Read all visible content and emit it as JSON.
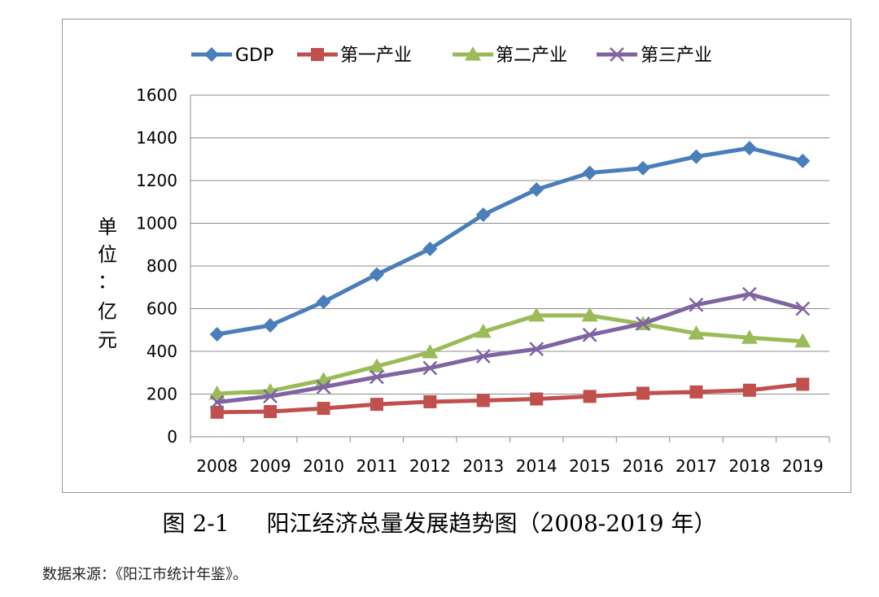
{
  "chart_data": {
    "type": "line",
    "categories": [
      "2008",
      "2009",
      "2010",
      "2011",
      "2012",
      "2013",
      "2014",
      "2015",
      "2016",
      "2017",
      "2018",
      "2019"
    ],
    "series": [
      {
        "name": "GDP",
        "color": "#4a7ebb",
        "marker": "diamond",
        "values": [
          480,
          522,
          632,
          760,
          880,
          1040,
          1158,
          1236,
          1258,
          1312,
          1352,
          1292
        ]
      },
      {
        "name": "第一产业",
        "color": "#c0504d",
        "marker": "square",
        "values": [
          115,
          118,
          133,
          152,
          164,
          170,
          177,
          189,
          204,
          210,
          218,
          246
        ]
      },
      {
        "name": "第二产业",
        "color": "#9bbb59",
        "marker": "triangle",
        "values": [
          202,
          214,
          266,
          330,
          396,
          492,
          568,
          568,
          528,
          484,
          464,
          447
        ]
      },
      {
        "name": "第三产业",
        "color": "#8064a2",
        "marker": "x",
        "values": [
          162,
          190,
          233,
          280,
          322,
          377,
          411,
          477,
          530,
          618,
          668,
          600
        ]
      }
    ],
    "ylim": [
      0,
      1600
    ],
    "yticks": [
      0,
      200,
      400,
      600,
      800,
      1000,
      1200,
      1400,
      1600
    ],
    "ylabel_chars": [
      "单",
      "位",
      "：",
      "亿",
      "元"
    ],
    "legend_position": "top",
    "grid": true
  },
  "caption": {
    "figure_no": "图 2-1",
    "title": "阳江经济总量发展趋势图（2008-2019 年）"
  },
  "source": "数据来源：《阳江市统计年鉴》。"
}
